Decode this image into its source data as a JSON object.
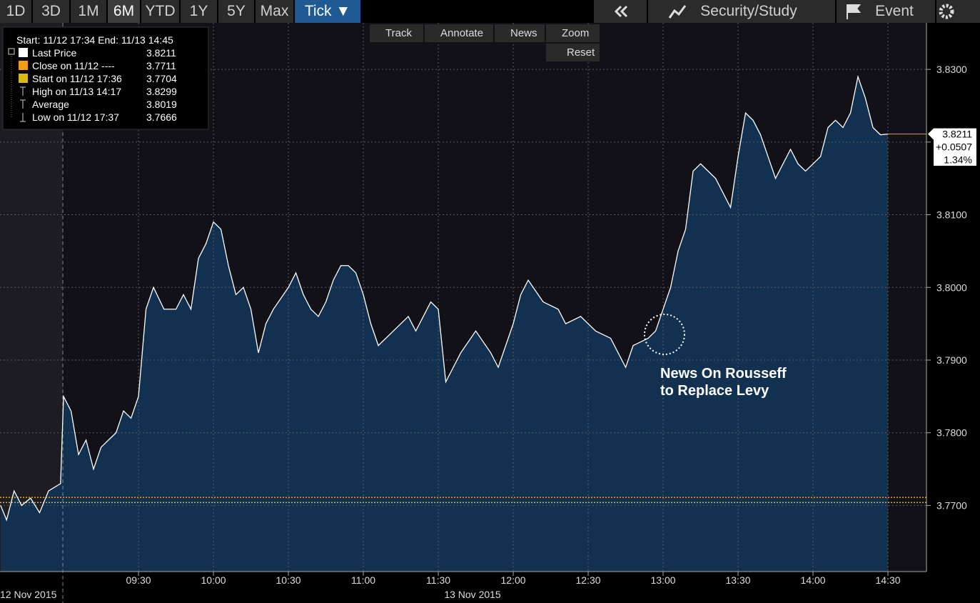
{
  "toolbar": {
    "ranges": [
      "1D",
      "3D",
      "1M",
      "6M",
      "YTD",
      "1Y",
      "5Y",
      "Max",
      "Tick ▼"
    ],
    "menu": [
      "Security/Study",
      "Event"
    ],
    "tools": [
      "Track",
      "Annotate",
      "News",
      "Zoom",
      "Reset"
    ]
  },
  "legend": {
    "header": "Start: 11/12 17:34 End: 11/13 14:45",
    "items": [
      {
        "label": "Last Price",
        "value": 3.8211,
        "color": "#ffffff"
      },
      {
        "label": "Close on 11/12 ----",
        "value": 3.7711,
        "color": "#f39c12"
      },
      {
        "label": "Start on 11/12 17:36",
        "value": 3.7704,
        "color": "#d9b81a"
      },
      {
        "label": "High on 11/13 14:17",
        "value": 3.8299
      },
      {
        "label": "Average",
        "value": 3.8019
      },
      {
        "label": "Low on 11/12 17:37",
        "value": 3.7666
      }
    ]
  },
  "chart_data": {
    "type": "area",
    "series": [
      {
        "color": "#ffffff",
        "fill": "#12304f",
        "x": [
          8.58,
          8.62,
          8.67,
          8.72,
          8.78,
          8.84,
          8.9,
          8.98,
          9.0,
          9.05,
          9.1,
          9.15,
          9.2,
          9.25,
          9.3,
          9.35,
          9.4,
          9.45,
          9.5,
          9.55,
          9.6,
          9.67,
          9.75,
          9.8,
          9.85,
          9.9,
          9.95,
          10.0,
          10.05,
          10.1,
          10.15,
          10.2,
          10.25,
          10.3,
          10.35,
          10.4,
          10.5,
          10.55,
          10.6,
          10.65,
          10.7,
          10.75,
          10.8,
          10.85,
          10.9,
          10.95,
          11.0,
          11.05,
          11.1,
          11.2,
          11.3,
          11.35,
          11.45,
          11.5,
          11.55,
          11.6,
          11.65,
          11.75,
          11.85,
          11.9,
          12.0,
          12.05,
          12.1,
          12.2,
          12.3,
          12.35,
          12.45,
          12.55,
          12.65,
          12.7,
          12.75,
          12.8,
          12.9,
          12.95,
          13.0,
          13.05,
          13.1,
          13.15,
          13.2,
          13.25,
          13.3,
          13.35,
          13.45,
          13.5,
          13.55,
          13.6,
          13.65,
          13.7,
          13.75,
          13.8,
          13.85,
          13.9,
          13.95,
          14.0,
          14.05,
          14.1,
          14.15,
          14.2,
          14.25,
          14.3,
          14.35,
          14.4,
          14.45,
          14.5
        ],
        "values": [
          3.77,
          3.768,
          3.772,
          3.77,
          3.771,
          3.769,
          3.772,
          3.773,
          3.785,
          3.783,
          3.777,
          3.779,
          3.775,
          3.778,
          3.779,
          3.78,
          3.783,
          3.782,
          3.785,
          3.797,
          3.8,
          3.797,
          3.797,
          3.799,
          3.797,
          3.804,
          3.806,
          3.809,
          3.808,
          3.803,
          3.799,
          3.8,
          3.797,
          3.791,
          3.795,
          3.797,
          3.8,
          3.802,
          3.799,
          3.797,
          3.796,
          3.798,
          3.801,
          3.803,
          3.803,
          3.802,
          3.799,
          3.795,
          3.792,
          3.794,
          3.796,
          3.794,
          3.798,
          3.797,
          3.787,
          3.789,
          3.791,
          3.794,
          3.791,
          3.789,
          3.795,
          3.799,
          3.801,
          3.798,
          3.797,
          3.795,
          3.796,
          3.794,
          3.793,
          3.791,
          3.789,
          3.792,
          3.793,
          3.794,
          3.797,
          3.8,
          3.805,
          3.808,
          3.816,
          3.817,
          3.816,
          3.815,
          3.811,
          3.818,
          3.824,
          3.823,
          3.821,
          3.818,
          3.815,
          3.817,
          3.819,
          3.817,
          3.816,
          3.817,
          3.818,
          3.822,
          3.823,
          3.822,
          3.824,
          3.829,
          3.826,
          3.822,
          3.821,
          3.8211
        ]
      }
    ],
    "last_change": "+0.0507",
    "last_change_pct": "1.34%",
    "annotation": [
      "News On Rousseff",
      "to Replace Levy"
    ],
    "xlim": [
      8.576,
      14.757
    ],
    "ylim": [
      3.7609,
      3.8364
    ],
    "xticks": [
      {
        "value": 9.5,
        "label": "09:30"
      },
      {
        "value": 10.0,
        "label": "10:00"
      },
      {
        "value": 10.5,
        "label": "10:30"
      },
      {
        "value": 11.0,
        "label": "11:00"
      },
      {
        "value": 11.5,
        "label": "11:30"
      },
      {
        "value": 12.0,
        "label": "12:00"
      },
      {
        "value": 12.5,
        "label": "12:30"
      },
      {
        "value": 13.0,
        "label": "13:00"
      },
      {
        "value": 13.5,
        "label": "13:30"
      },
      {
        "value": 14.0,
        "label": "14:00"
      },
      {
        "value": 14.5,
        "label": "14:30"
      }
    ],
    "yticks": [
      {
        "value": 3.77,
        "label": "3.7700"
      },
      {
        "value": 3.78,
        "label": "3.7800"
      },
      {
        "value": 3.79,
        "label": "3.7900"
      },
      {
        "value": 3.8,
        "label": "3.8000"
      },
      {
        "value": 3.81,
        "label": "3.8100"
      },
      {
        "value": 3.82,
        "label": "3.8200"
      },
      {
        "value": 3.83,
        "label": "3.8300"
      }
    ],
    "date_labels": [
      "12 Nov 2015",
      "13 Nov 2015"
    ],
    "grid": true
  }
}
